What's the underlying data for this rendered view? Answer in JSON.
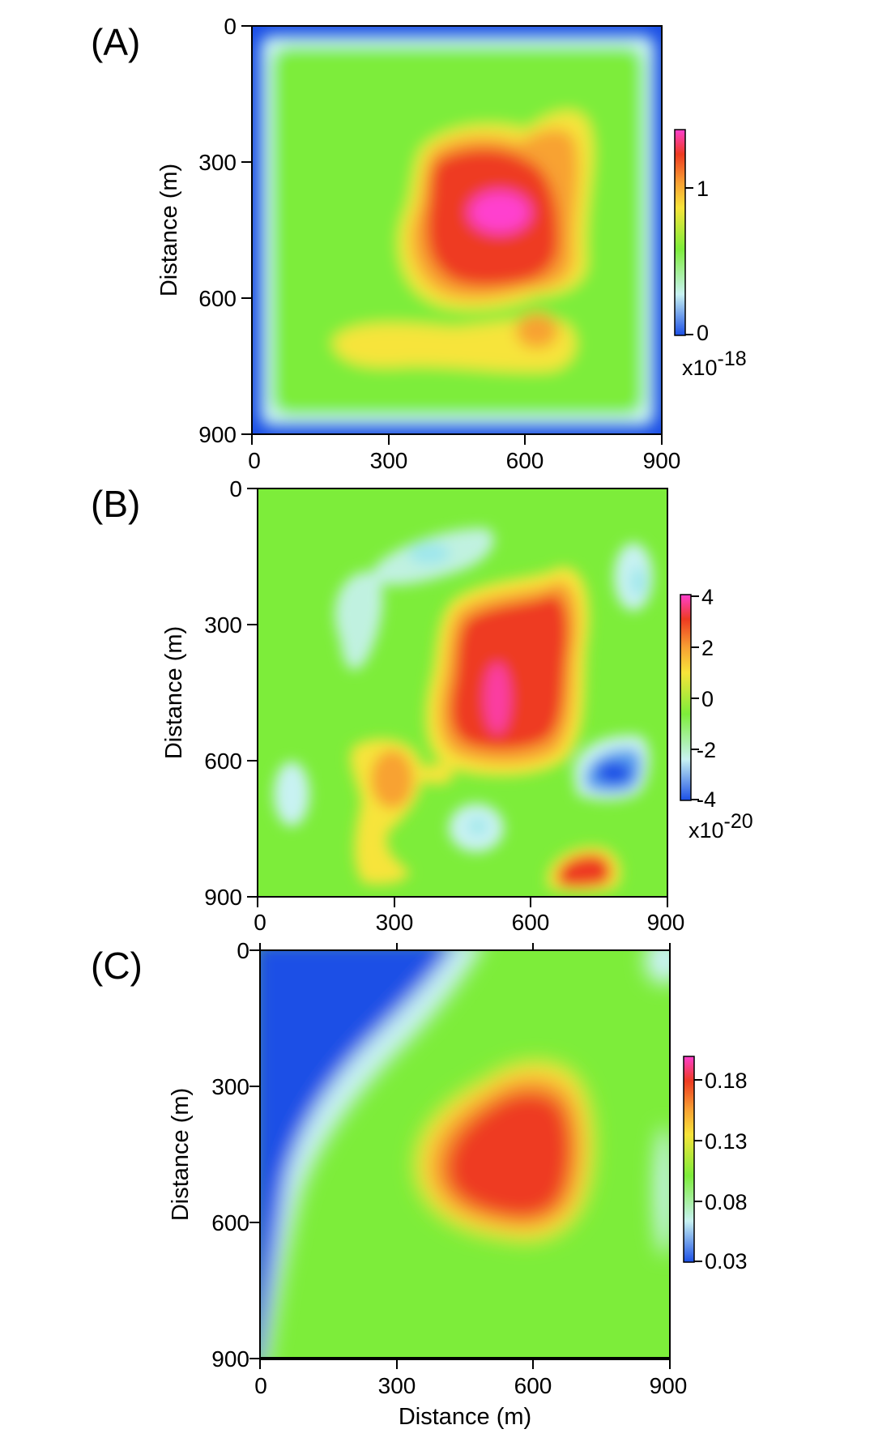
{
  "figure": {
    "xlabel_bottom": "Distance (m)"
  },
  "chart_data": [
    {
      "type": "heatmap",
      "panel_label": "(A)",
      "ylabel": "Distance (m)",
      "xlabel": "",
      "x_ticks": [
        "0",
        "300",
        "600",
        "900"
      ],
      "y_ticks": [
        "0",
        "300",
        "600",
        "900"
      ],
      "xlim": [
        0,
        900
      ],
      "ylim": [
        900,
        0
      ],
      "y_inverted": true,
      "grid": false,
      "border": "blue-edge",
      "colorbar": {
        "ticks": [
          {
            "value": 1,
            "label": "1"
          },
          {
            "value": 0,
            "label": "0"
          }
        ],
        "range": [
          0,
          1.4
        ],
        "multiplier_base": "x10",
        "multiplier_exp": "-18",
        "colormap": [
          "#1b4fe6",
          "#c8f2f2",
          "#7ded3a",
          "#f7e43a",
          "#f8a233",
          "#ee3b21",
          "#ff3fcf"
        ]
      },
      "features": [
        {
          "kind": "peak",
          "x": 560,
          "y": 420,
          "value": 1.4
        },
        {
          "kind": "high-region",
          "x": 450,
          "y": 450,
          "value": 1.15
        },
        {
          "kind": "moderate-tail",
          "x": 400,
          "y": 700,
          "value": 0.95
        }
      ]
    },
    {
      "type": "heatmap",
      "panel_label": "(B)",
      "ylabel": "Distance (m)",
      "xlabel": "",
      "x_ticks": [
        "0",
        "300",
        "600",
        "900"
      ],
      "y_ticks": [
        "0",
        "300",
        "600",
        "900"
      ],
      "xlim": [
        0,
        900
      ],
      "ylim": [
        900,
        0
      ],
      "y_inverted": true,
      "grid": false,
      "colorbar": {
        "ticks": [
          {
            "value": 4,
            "label": "4"
          },
          {
            "value": 2,
            "label": "2"
          },
          {
            "value": 0,
            "label": "0"
          },
          {
            "value": -2,
            "label": "-2"
          },
          {
            "value": -4,
            "label": "-4"
          }
        ],
        "range": [
          -4,
          4
        ],
        "multiplier_base": "x10",
        "multiplier_exp": "-20",
        "colormap": [
          "#1b4fe6",
          "#c8f2f2",
          "#7ded3a",
          "#f7e43a",
          "#f8a233",
          "#ee3b21",
          "#ff3fcf"
        ]
      },
      "features": [
        {
          "kind": "positive-peak",
          "x": 520,
          "y": 480,
          "value": 3.8
        },
        {
          "kind": "positive-lobe",
          "x": 270,
          "y": 680,
          "value": 1.5
        },
        {
          "kind": "positive-blob",
          "x": 700,
          "y": 840,
          "value": 3.2
        },
        {
          "kind": "negative-blob",
          "x": 770,
          "y": 630,
          "value": -3.2
        }
      ]
    },
    {
      "type": "heatmap",
      "panel_label": "(C)",
      "ylabel": "Distance (m)",
      "xlabel": "Distance (m)",
      "x_ticks": [
        "0",
        "300",
        "600",
        "900"
      ],
      "y_ticks": [
        "0",
        "300",
        "600",
        "900"
      ],
      "xlim": [
        0,
        900
      ],
      "ylim": [
        900,
        0
      ],
      "y_inverted": true,
      "grid": false,
      "colorbar": {
        "ticks": [
          {
            "value": 0.18,
            "label": "0.18"
          },
          {
            "value": 0.13,
            "label": "0.13"
          },
          {
            "value": 0.08,
            "label": "0.08"
          },
          {
            "value": 0.03,
            "label": "0.03"
          }
        ],
        "range": [
          0.03,
          0.2
        ],
        "multiplier_base": "",
        "multiplier_exp": "",
        "colormap": [
          "#1b4fe6",
          "#c8f2f2",
          "#7ded3a",
          "#f7e43a",
          "#f8a233",
          "#ee3b21",
          "#ff3fcf"
        ]
      },
      "features": [
        {
          "kind": "high-region",
          "x": 560,
          "y": 420,
          "value": 0.17
        },
        {
          "kind": "low-corner",
          "x": 0,
          "y": 0,
          "value": 0.03
        }
      ]
    }
  ]
}
